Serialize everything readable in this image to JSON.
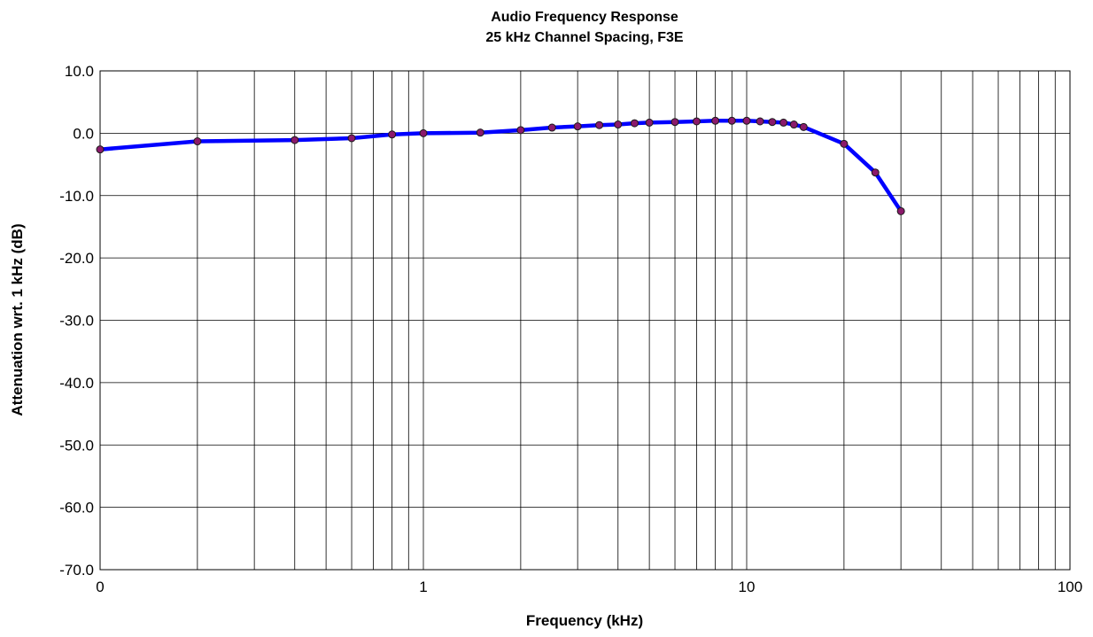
{
  "chart_data": {
    "type": "line",
    "title": "Audio Frequency Response",
    "subtitle": "25 kHz Channel Spacing, F3E",
    "xlabel": "Frequency (kHz)",
    "ylabel": "Attenuation wrt. 1 kHz (dB)",
    "x_scale": "log",
    "xlim": [
      0.1,
      100
    ],
    "ylim": [
      -70,
      10
    ],
    "x_ticks": [
      0.1,
      1,
      10,
      100
    ],
    "x_tick_labels": [
      "0",
      "1",
      "10",
      "100"
    ],
    "y_ticks": [
      10,
      0,
      -10,
      -20,
      -30,
      -40,
      -50,
      -60,
      -70
    ],
    "y_tick_labels": [
      "10.0",
      "0.0",
      "-10.0",
      "-20.0",
      "-30.0",
      "-40.0",
      "-50.0",
      "-60.0",
      "-70.0"
    ],
    "grid": true,
    "legend": "none",
    "series": [
      {
        "color": "#0000ff",
        "marker_color": "#8b1a6b",
        "x": [
          0.1,
          0.2,
          0.4,
          0.6,
          0.8,
          1.0,
          1.5,
          2.0,
          2.5,
          3.0,
          3.5,
          4.0,
          4.5,
          5.0,
          6.0,
          7.0,
          8.0,
          9.0,
          10.0,
          11.0,
          12.0,
          13.0,
          14.0,
          15.0,
          20.0,
          25.0,
          30.0
        ],
        "y": [
          -2.6,
          -1.3,
          -1.1,
          -0.8,
          -0.2,
          0.0,
          0.1,
          0.5,
          0.9,
          1.1,
          1.3,
          1.4,
          1.6,
          1.7,
          1.8,
          1.9,
          2.0,
          2.0,
          2.0,
          1.9,
          1.8,
          1.7,
          1.4,
          1.0,
          -1.7,
          -6.3,
          -12.5
        ]
      }
    ]
  }
}
